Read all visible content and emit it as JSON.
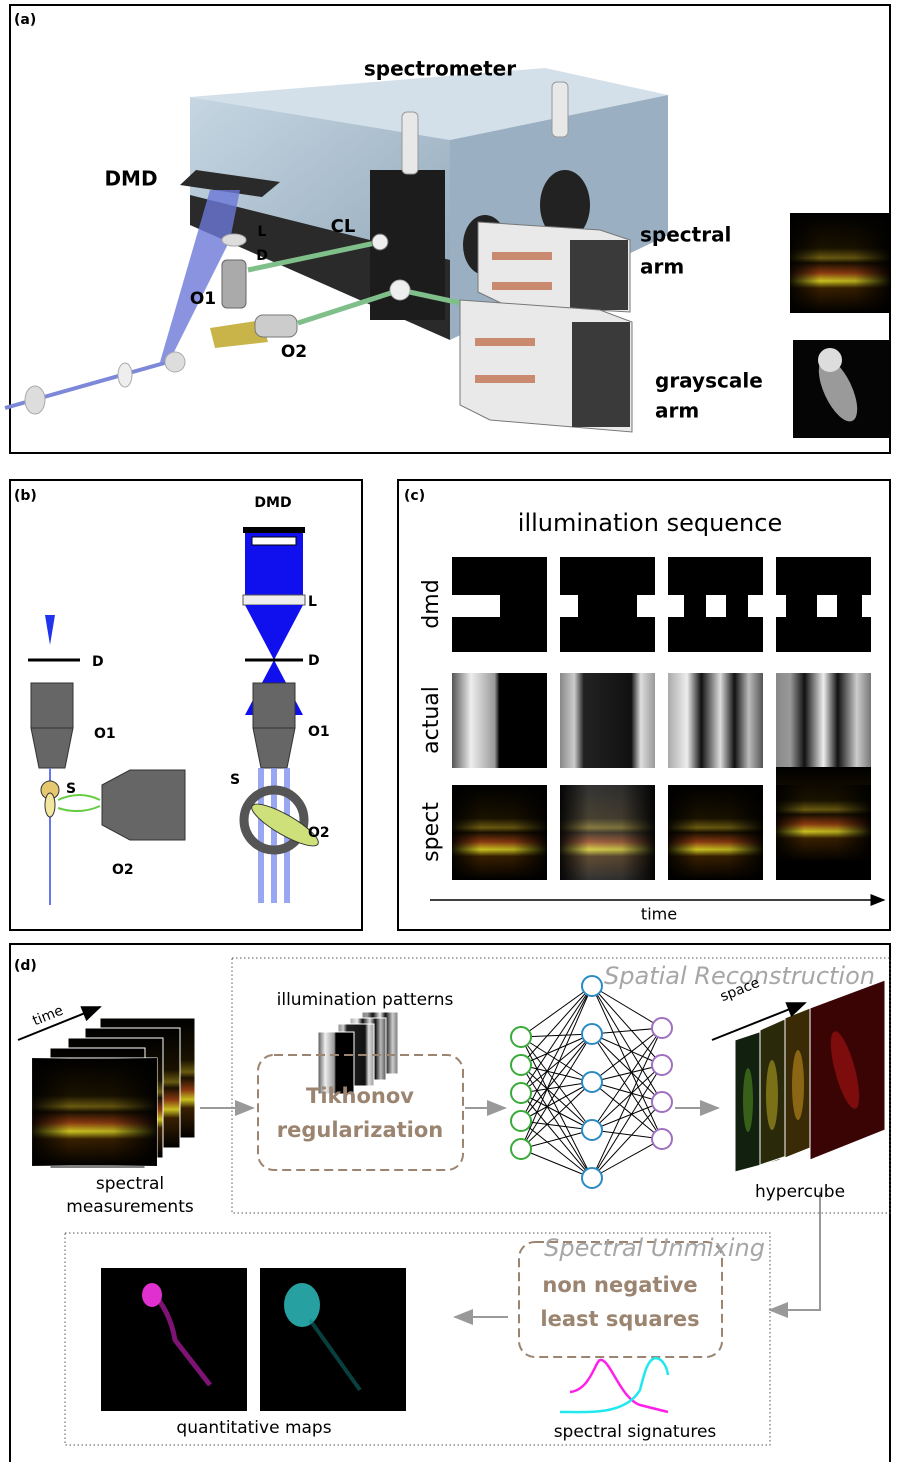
{
  "panel_a": {
    "label": "(a)",
    "spectrometer": "spectrometer",
    "dmd": "DMD",
    "l": "L",
    "d": "D",
    "cl": "CL",
    "o1": "O1",
    "o2": "O2",
    "spectral_arm": [
      "spectral",
      "arm"
    ],
    "grayscale_arm": [
      "grayscale",
      "arm"
    ]
  },
  "panel_b": {
    "label": "(b)",
    "left": {
      "d": "D",
      "o1": "O1",
      "s": "S",
      "o2": "O2"
    },
    "right": {
      "dmd": "DMD",
      "l": "L",
      "d": "D",
      "o1": "O1",
      "s": "S",
      "o2": "O2"
    }
  },
  "panel_c": {
    "label": "(c)",
    "title": "illumination sequence",
    "rows": [
      "dmd",
      "actual",
      "spect"
    ],
    "axis": "time"
  },
  "panel_d": {
    "label": "(d)",
    "spatial_title": "Spatial Reconstruction",
    "illumination_patterns": "illumination patterns",
    "time": "time",
    "tikhonov": [
      "Tikhonov",
      "regularization"
    ],
    "space": "space",
    "spectral_measurements": [
      "spectral",
      "measurements"
    ],
    "hypercube": "hypercube",
    "unmixing_title": "Spectral Unmixing",
    "nnls": [
      "non negative",
      "least squares"
    ],
    "quantitative_maps": "quantitative maps",
    "spectral_signatures": "spectral signatures"
  }
}
